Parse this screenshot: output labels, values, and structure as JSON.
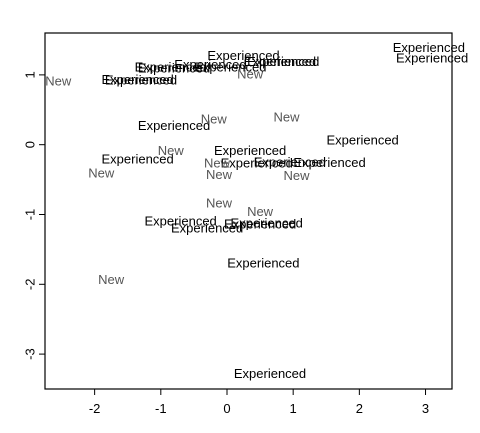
{
  "chart_data": {
    "type": "scatter",
    "title": "",
    "xlabel": "",
    "ylabel": "",
    "xlim": [
      -2.75,
      3.4
    ],
    "ylim": [
      -3.5,
      1.6
    ],
    "xticks": [
      -2,
      -1,
      0,
      1,
      2,
      3
    ],
    "yticks": [
      -3,
      -2,
      -1,
      0,
      1
    ],
    "grid": false,
    "legend": "none",
    "colors": {
      "Experienced": "#000000",
      "New": "#555555"
    },
    "points": [
      {
        "x": 0.25,
        "y": 1.26,
        "label": "Experienced"
      },
      {
        "x": -0.85,
        "y": 1.1,
        "label": "Experienced"
      },
      {
        "x": -0.8,
        "y": 1.08,
        "label": "Experienced"
      },
      {
        "x": -0.25,
        "y": 1.13,
        "label": "Experienced"
      },
      {
        "x": 0.05,
        "y": 1.1,
        "label": "Experienced"
      },
      {
        "x": 0.8,
        "y": 1.18,
        "label": "Experienced"
      },
      {
        "x": 0.85,
        "y": 1.18,
        "label": "Experienced"
      },
      {
        "x": -1.35,
        "y": 0.92,
        "label": "Experienced"
      },
      {
        "x": -1.3,
        "y": 0.91,
        "label": "Experienced"
      },
      {
        "x": 3.05,
        "y": 1.38,
        "label": "Experienced"
      },
      {
        "x": 3.1,
        "y": 1.23,
        "label": "Experienced"
      },
      {
        "x": -0.8,
        "y": 0.26,
        "label": "Experienced"
      },
      {
        "x": 2.05,
        "y": 0.05,
        "label": "Experienced"
      },
      {
        "x": 0.35,
        "y": -0.1,
        "label": "Experienced"
      },
      {
        "x": 0.45,
        "y": -0.28,
        "label": "Experienced"
      },
      {
        "x": 0.95,
        "y": -0.26,
        "label": "Experienced"
      },
      {
        "x": 1.55,
        "y": -0.27,
        "label": "Experienced"
      },
      {
        "x": -1.35,
        "y": -0.22,
        "label": "Experienced"
      },
      {
        "x": -0.7,
        "y": -1.11,
        "label": "Experienced"
      },
      {
        "x": -0.3,
        "y": -1.21,
        "label": "Experienced"
      },
      {
        "x": 0.5,
        "y": -1.15,
        "label": "Experienced"
      },
      {
        "x": 0.6,
        "y": -1.14,
        "label": "Experienced"
      },
      {
        "x": 0.55,
        "y": -1.71,
        "label": "Experienced"
      },
      {
        "x": 0.65,
        "y": -3.29,
        "label": "Experienced"
      },
      {
        "x": -2.55,
        "y": 0.9,
        "label": "New"
      },
      {
        "x": 0.35,
        "y": 1.0,
        "label": "New"
      },
      {
        "x": 0.9,
        "y": 0.38,
        "label": "New"
      },
      {
        "x": -0.2,
        "y": 0.35,
        "label": "New"
      },
      {
        "x": -0.85,
        "y": -0.1,
        "label": "New"
      },
      {
        "x": -1.9,
        "y": -0.42,
        "label": "New"
      },
      {
        "x": -0.15,
        "y": -0.28,
        "label": "New"
      },
      {
        "x": -0.12,
        "y": -0.44,
        "label": "New"
      },
      {
        "x": 1.05,
        "y": -0.46,
        "label": "New"
      },
      {
        "x": -0.12,
        "y": -0.85,
        "label": "New"
      },
      {
        "x": 0.5,
        "y": -0.97,
        "label": "New"
      },
      {
        "x": -1.75,
        "y": -1.95,
        "label": "New"
      }
    ]
  }
}
